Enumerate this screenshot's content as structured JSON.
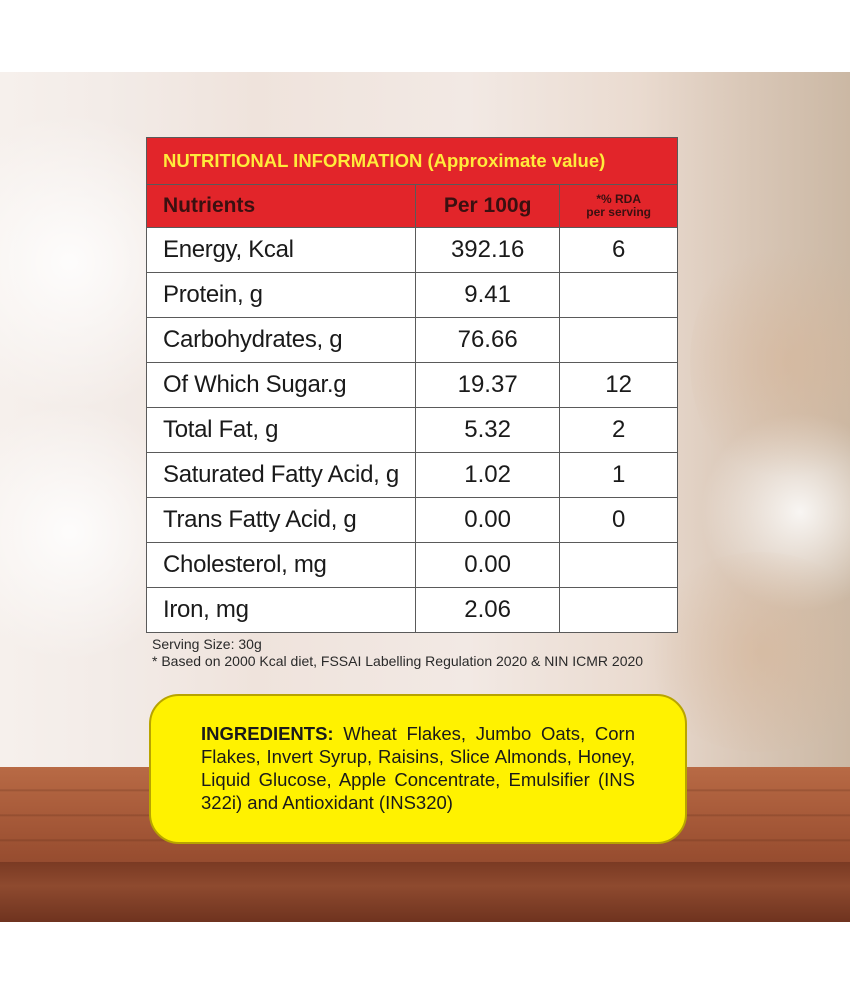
{
  "nutrition": {
    "title": "NUTRITIONAL INFORMATION (Approximate value)",
    "headers": {
      "nutrients": "Nutrients",
      "per100g": "Per 100g",
      "rda_line1": "*% RDA",
      "rda_line2": "per serving"
    },
    "rows": [
      {
        "name": "Energy, Kcal",
        "per100g": "392.16",
        "rda": "6"
      },
      {
        "name": "Protein, g",
        "per100g": "9.41",
        "rda": ""
      },
      {
        "name": "Carbohydrates, g",
        "per100g": "76.66",
        "rda": ""
      },
      {
        "name": "Of Which Sugar.g",
        "per100g": "19.37",
        "rda": "12"
      },
      {
        "name": "Total Fat, g",
        "per100g": "5.32",
        "rda": "2"
      },
      {
        "name": "Saturated Fatty Acid, g",
        "per100g": "1.02",
        "rda": "1"
      },
      {
        "name": "Trans Fatty Acid, g",
        "per100g": "0.00",
        "rda": "0"
      },
      {
        "name": "Cholesterol, mg",
        "per100g": "0.00",
        "rda": ""
      },
      {
        "name": "Iron, mg",
        "per100g": "2.06",
        "rda": ""
      }
    ],
    "serving_size": "Serving Size: 30g",
    "footnote": "* Based on 2000 Kcal diet, FSSAI Labelling Regulation 2020 & NIN ICMR 2020"
  },
  "ingredients": {
    "label": "INGREDIENTS:",
    "text": " Wheat Flakes, Jumbo Oats, Corn Flakes, Invert Syrup, Raisins, Slice Almonds, Honey, Liquid Glucose, Apple Concentrate, Emulsifier (INS 322i) and Antioxidant (INS320)"
  },
  "colors": {
    "header_red": "#e2252a",
    "title_yellow": "#ffeb3b",
    "ingredients_yellow": "#fff200"
  }
}
